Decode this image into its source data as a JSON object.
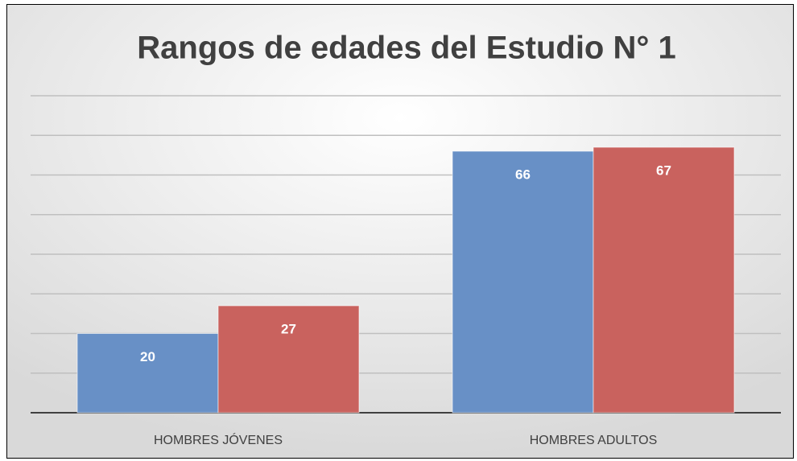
{
  "chart_data": {
    "type": "bar",
    "title": "Rangos de edades del Estudio N° 1",
    "categories": [
      "HOMBRES JÓVENES",
      "HOMBRES ADULTOS"
    ],
    "series": [
      {
        "color": "#6890c6",
        "values": [
          20,
          66
        ]
      },
      {
        "color": "#c9625e",
        "values": [
          27,
          67
        ]
      }
    ],
    "ylim": [
      0,
      80
    ],
    "yticks": [
      0,
      10,
      20,
      30,
      40,
      50,
      60,
      70,
      80
    ],
    "grid": true
  }
}
